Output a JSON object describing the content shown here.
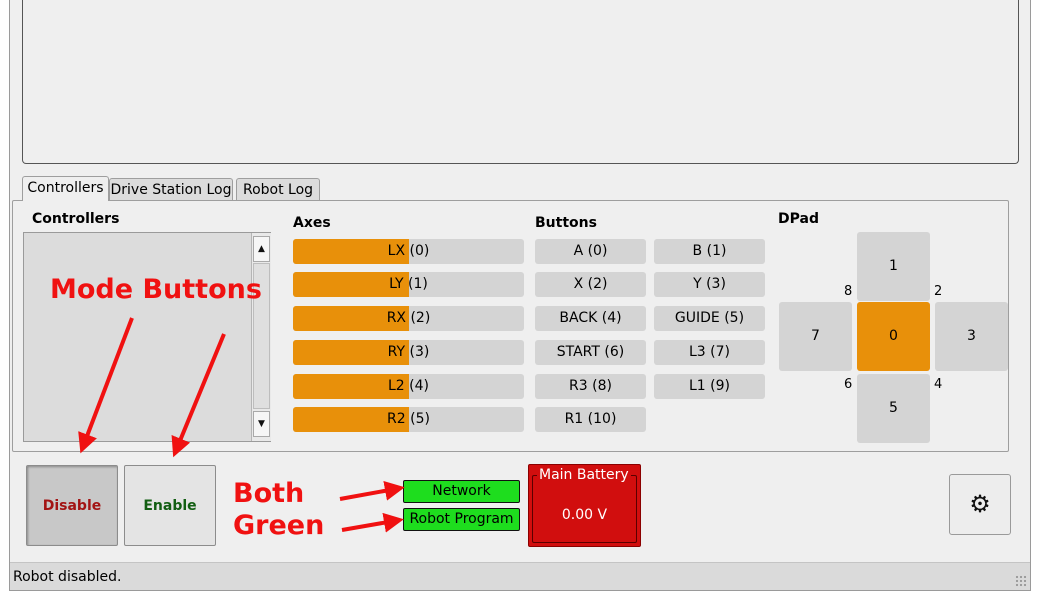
{
  "tabs": [
    {
      "label": "Controllers",
      "active": true
    },
    {
      "label": "Drive Station Log",
      "active": false
    },
    {
      "label": "Robot Log",
      "active": false
    }
  ],
  "controllers": {
    "title": "Controllers",
    "scroll_up_icon": "triangle-up-icon",
    "scroll_down_icon": "triangle-down-icon"
  },
  "axes": {
    "title": "Axes",
    "items": [
      {
        "name": "LX",
        "index": "(0)",
        "value_fraction": 0.5
      },
      {
        "name": "LY",
        "index": "(1)",
        "value_fraction": 0.5
      },
      {
        "name": "RX",
        "index": "(2)",
        "value_fraction": 0.5
      },
      {
        "name": "RY",
        "index": "(3)",
        "value_fraction": 0.5
      },
      {
        "name": "L2",
        "index": "(4)",
        "value_fraction": 0.5
      },
      {
        "name": "R2",
        "index": "(5)",
        "value_fraction": 0.5
      }
    ]
  },
  "buttons": {
    "title": "Buttons",
    "items": [
      "A (0)",
      "B (1)",
      "X (2)",
      "Y (3)",
      "BACK (4)",
      "GUIDE (5)",
      "START (6)",
      "L3 (7)",
      "R3 (8)",
      "L1 (9)",
      "R1 (10)"
    ]
  },
  "dpad": {
    "title": "DPad",
    "up": "1",
    "right": "3",
    "down": "5",
    "left": "7",
    "center": "0",
    "corner_up_left": "8",
    "corner_up_right": "2",
    "corner_down_left": "6",
    "corner_down_right": "4",
    "active": "0"
  },
  "mode": {
    "disable_label": "Disable",
    "enable_label": "Enable",
    "selected": "Disable"
  },
  "indicators": {
    "network_label": "Network",
    "robot_program_label": "Robot Program"
  },
  "battery": {
    "title": "Main Battery",
    "value": "0.00 V"
  },
  "settings": {
    "icon": "gear-icon"
  },
  "status_bar": {
    "text": "Robot disabled."
  },
  "annotations": {
    "mode_buttons": "Mode Buttons",
    "both_line1": "Both",
    "both_line2": "Green"
  },
  "colors": {
    "axis_fill": "#e8900a",
    "dpad_active": "#e8900a",
    "indicator_green": "#1edd1e",
    "battery_red": "#d10e0e",
    "disable_text": "#a31414",
    "enable_text": "#135f13",
    "annotation_red": "#f01111"
  }
}
